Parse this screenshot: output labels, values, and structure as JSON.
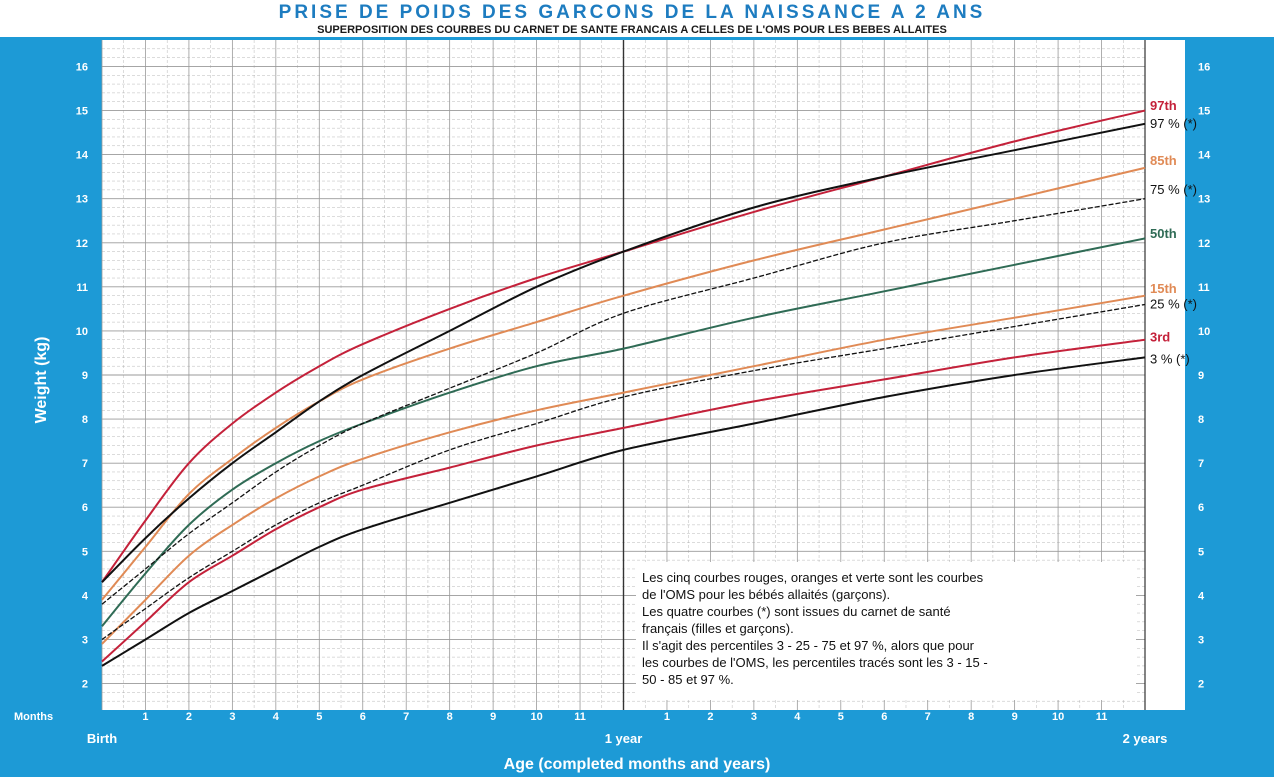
{
  "title": "PRISE DE POIDS DES GARCONS DE LA NAISSANCE A 2 ANS",
  "subtitle": "SUPERPOSITION DES COURBES DU CARNET DE SANTE FRANCAIS A CELLES DE L'OMS POUR LES BEBES ALLAITES",
  "colors": {
    "frame": "#1d9ad6",
    "grid": "#9a9a9a",
    "who_red": "#c4213a",
    "who_orange": "#e08a55",
    "who_green": "#2f6b55",
    "fr_black": "#111111"
  },
  "chart_data": {
    "type": "line",
    "title": "PRISE DE POIDS DES GARCONS DE LA NAISSANCE A 2 ANS",
    "subtitle": "SUPERPOSITION DES COURBES DU CARNET DE SANTE FRANCAIS A CELLES DE L'OMS POUR LES BEBES ALLAITES",
    "xlabel": "Age (completed months and years)",
    "ylabel": "Weight (kg)",
    "x_unit_label": "Months",
    "xlim": [
      0,
      24
    ],
    "ylim": [
      1.4,
      16.6
    ],
    "yticks": [
      2,
      3,
      4,
      5,
      6,
      7,
      8,
      9,
      10,
      11,
      12,
      13,
      14,
      15,
      16
    ],
    "x_major_labels": [
      {
        "x": 0,
        "label": "Birth"
      },
      {
        "x": 12,
        "label": "1 year"
      },
      {
        "x": 24,
        "label": "2 years"
      }
    ],
    "x_month_ticks": [
      {
        "x": 1,
        "label": "1"
      },
      {
        "x": 2,
        "label": "2"
      },
      {
        "x": 3,
        "label": "3"
      },
      {
        "x": 4,
        "label": "4"
      },
      {
        "x": 5,
        "label": "5"
      },
      {
        "x": 6,
        "label": "6"
      },
      {
        "x": 7,
        "label": "7"
      },
      {
        "x": 8,
        "label": "8"
      },
      {
        "x": 9,
        "label": "9"
      },
      {
        "x": 10,
        "label": "10"
      },
      {
        "x": 11,
        "label": "11"
      },
      {
        "x": 13,
        "label": "1"
      },
      {
        "x": 14,
        "label": "2"
      },
      {
        "x": 15,
        "label": "3"
      },
      {
        "x": 16,
        "label": "4"
      },
      {
        "x": 17,
        "label": "5"
      },
      {
        "x": 18,
        "label": "6"
      },
      {
        "x": 19,
        "label": "7"
      },
      {
        "x": 20,
        "label": "8"
      },
      {
        "x": 21,
        "label": "9"
      },
      {
        "x": 22,
        "label": "10"
      },
      {
        "x": 23,
        "label": "11"
      }
    ],
    "x": [
      0,
      1,
      2,
      3,
      4,
      5,
      6,
      8,
      10,
      12,
      15,
      18,
      21,
      24
    ],
    "grid": true,
    "series": [
      {
        "name": "97th",
        "color": "#c4213a",
        "dash": "solid",
        "values": [
          4.3,
          5.7,
          7.0,
          7.9,
          8.6,
          9.2,
          9.7,
          10.5,
          11.2,
          11.8,
          12.7,
          13.5,
          14.3,
          15.0
        ]
      },
      {
        "name": "85th",
        "color": "#e08a55",
        "dash": "solid",
        "values": [
          3.9,
          5.1,
          6.3,
          7.1,
          7.8,
          8.4,
          8.9,
          9.6,
          10.2,
          10.8,
          11.6,
          12.3,
          13.0,
          13.7
        ]
      },
      {
        "name": "50th",
        "color": "#2f6b55",
        "dash": "solid",
        "values": [
          3.3,
          4.5,
          5.6,
          6.4,
          7.0,
          7.5,
          7.9,
          8.6,
          9.2,
          9.6,
          10.3,
          10.9,
          11.5,
          12.1
        ]
      },
      {
        "name": "15th",
        "color": "#e08a55",
        "dash": "solid",
        "values": [
          2.9,
          3.9,
          4.9,
          5.6,
          6.2,
          6.7,
          7.1,
          7.7,
          8.2,
          8.6,
          9.2,
          9.8,
          10.3,
          10.8
        ]
      },
      {
        "name": "3rd",
        "color": "#c4213a",
        "dash": "solid",
        "values": [
          2.5,
          3.4,
          4.3,
          4.9,
          5.5,
          6.0,
          6.4,
          6.9,
          7.4,
          7.8,
          8.4,
          8.9,
          9.4,
          9.8
        ]
      },
      {
        "name": "97 % (*)",
        "color": "#111111",
        "dash": "solid",
        "values": [
          4.3,
          5.3,
          6.2,
          7.0,
          7.7,
          8.4,
          9.0,
          10.0,
          11.0,
          11.8,
          12.8,
          13.5,
          14.1,
          14.7
        ]
      },
      {
        "name": "75 % (*)",
        "color": "#111111",
        "dash": "dashed",
        "values": [
          3.8,
          4.6,
          5.4,
          6.1,
          6.8,
          7.4,
          7.9,
          8.7,
          9.5,
          10.4,
          11.2,
          12.0,
          12.5,
          13.0
        ]
      },
      {
        "name": "25 % (*)",
        "color": "#111111",
        "dash": "dashed",
        "values": [
          3.0,
          3.7,
          4.4,
          5.0,
          5.6,
          6.1,
          6.5,
          7.3,
          7.9,
          8.5,
          9.1,
          9.6,
          10.1,
          10.6
        ]
      },
      {
        "name": "3 % (*)",
        "color": "#111111",
        "dash": "solid",
        "values": [
          2.4,
          3.0,
          3.6,
          4.1,
          4.6,
          5.1,
          5.5,
          6.1,
          6.7,
          7.3,
          7.9,
          8.5,
          9.0,
          9.4
        ]
      }
    ]
  },
  "right_labels": [
    {
      "text": "97th",
      "y": 15.1,
      "color": "#c4213a"
    },
    {
      "text": "97 % (*)",
      "y": 14.7,
      "color": "#111111"
    },
    {
      "text": "85th",
      "y": 13.85,
      "color": "#e08a55"
    },
    {
      "text": "75 % (*)",
      "y": 13.2,
      "color": "#111111"
    },
    {
      "text": "50th",
      "y": 12.2,
      "color": "#2f6b55"
    },
    {
      "text": "15th",
      "y": 10.95,
      "color": "#e08a55"
    },
    {
      "text": "25 % (*)",
      "y": 10.6,
      "color": "#111111"
    },
    {
      "text": "3rd",
      "y": 9.85,
      "color": "#c4213a"
    },
    {
      "text": "3 % (*)",
      "y": 9.35,
      "color": "#111111"
    }
  ],
  "note_lines": [
    "Les cinq courbes rouges, oranges et verte sont les courbes",
    "de l'OMS pour les bébés allaités (garçons).",
    "Les quatre courbes (*) sont issues du carnet de santé",
    "français (filles et garçons).",
    "Il s'agit des percentiles 3 - 25 - 75 et 97 %, alors que pour",
    "les courbes de l'OMS, les percentiles tracés sont les 3 - 15 -",
    "50 - 85 et 97 %."
  ]
}
